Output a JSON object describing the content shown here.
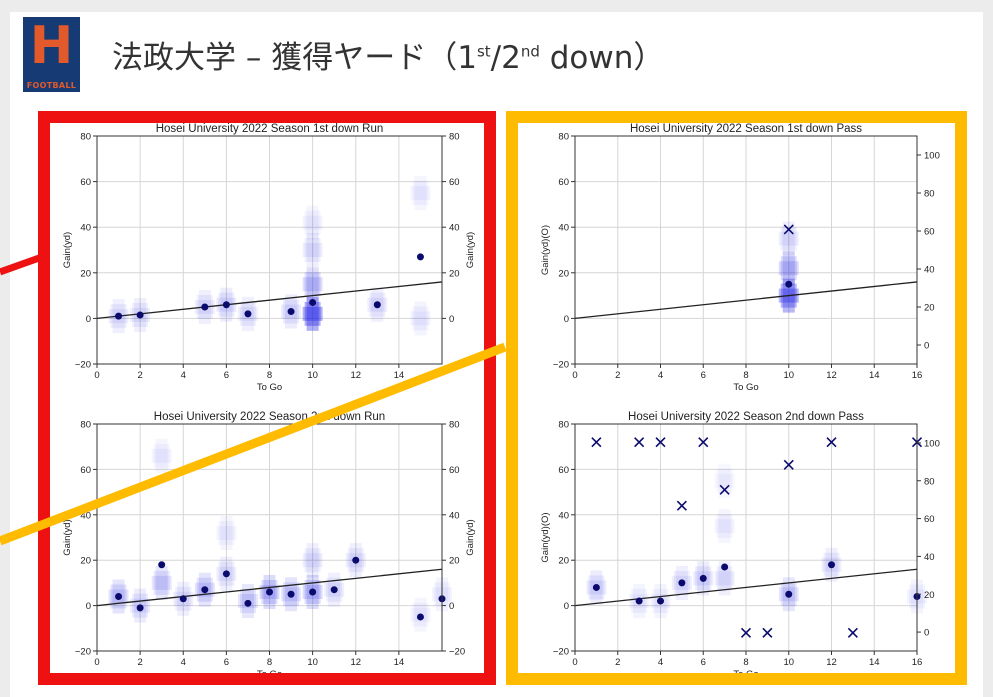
{
  "header": {
    "logo_letter": "H",
    "logo_text": "FOOTBALL",
    "title_main": "法政大学 – 獲得ヤード（1",
    "sup1": "st",
    "title_mid": "/2",
    "sup2": "nd",
    "title_end": " down）"
  },
  "colors": {
    "run_frame": "#ee1111",
    "pass_frame": "#ffbb00",
    "point": "#0b0b6e",
    "density": "#1e1ee6",
    "logo_bg": "#163a73",
    "logo_fg": "#e2592c"
  },
  "chart_data": [
    {
      "type": "scatter",
      "title": "Hosei University 2022 Season  1st down Run",
      "xlabel": "To Go",
      "ylabel": "Gain(yd)",
      "ylabel_right": "Gain(yd)",
      "xlim": [
        0,
        16
      ],
      "ylim": [
        -20,
        80
      ],
      "xticks": [
        0,
        2,
        4,
        6,
        8,
        10,
        12,
        14
      ],
      "yticks": [
        -20,
        0,
        20,
        40,
        60,
        80
      ],
      "right_ylim": [
        -20,
        80
      ],
      "right_ticks": [
        0,
        20,
        40,
        60,
        80
      ],
      "grid": true,
      "points": [
        [
          1,
          1
        ],
        [
          2,
          1.5
        ],
        [
          5,
          5
        ],
        [
          6,
          6
        ],
        [
          7,
          2
        ],
        [
          9,
          3
        ],
        [
          10,
          7
        ],
        [
          13,
          6
        ],
        [
          15,
          27
        ]
      ],
      "x_markers": [],
      "trend": {
        "y_at_0": 0,
        "y_at_16": 16
      },
      "density": [
        [
          1,
          1,
          0.2
        ],
        [
          2,
          1.5,
          0.2
        ],
        [
          5,
          5,
          0.2
        ],
        [
          6,
          6,
          0.25
        ],
        [
          7,
          2,
          0.2
        ],
        [
          9,
          3,
          0.25
        ],
        [
          10,
          2,
          1
        ],
        [
          10,
          15,
          0.4
        ],
        [
          10,
          30,
          0.2
        ],
        [
          10,
          42,
          0.12
        ],
        [
          13,
          6,
          0.2
        ],
        [
          15,
          0,
          0.15
        ],
        [
          15,
          55,
          0.12
        ]
      ]
    },
    {
      "type": "scatter",
      "title": "Hosei University 2022 Season  1st down Pass",
      "xlabel": "To Go",
      "ylabel": "Gain(yd)(O)",
      "xlim": [
        0,
        16
      ],
      "ylim": [
        -20,
        80
      ],
      "xticks": [
        0,
        2,
        4,
        6,
        8,
        10,
        12,
        14,
        16
      ],
      "yticks": [
        -20,
        0,
        20,
        40,
        60,
        80
      ],
      "right_ylim": [
        -10,
        110
      ],
      "right_ticks": [
        0,
        20,
        40,
        60,
        80,
        100
      ],
      "grid": true,
      "points": [
        [
          10,
          15
        ]
      ],
      "x_markers": [
        [
          10,
          39
        ]
      ],
      "trend": {
        "y_at_0": 0,
        "y_at_16": 16
      },
      "density": [
        [
          10,
          10,
          0.9
        ],
        [
          10,
          22,
          0.45
        ],
        [
          10,
          35,
          0.2
        ]
      ]
    },
    {
      "type": "scatter",
      "title": "Hosei University 2022 Season  2nd down Run",
      "xlabel": "To Go",
      "ylabel": "Gain(yd)",
      "ylabel_right": "Gain(yd)",
      "xlim": [
        0,
        16
      ],
      "ylim": [
        -20,
        80
      ],
      "xticks": [
        0,
        2,
        4,
        6,
        8,
        10,
        12,
        14
      ],
      "yticks": [
        -20,
        0,
        20,
        40,
        60,
        80
      ],
      "right_ylim": [
        -20,
        80
      ],
      "right_ticks": [
        -20,
        0,
        20,
        40,
        60,
        80
      ],
      "grid": true,
      "points": [
        [
          1,
          4
        ],
        [
          2,
          -1
        ],
        [
          3,
          18
        ],
        [
          4,
          3
        ],
        [
          5,
          7
        ],
        [
          6,
          14
        ],
        [
          7,
          1
        ],
        [
          8,
          6
        ],
        [
          9,
          5
        ],
        [
          10,
          6
        ],
        [
          11,
          7
        ],
        [
          12,
          20
        ],
        [
          15,
          -5
        ],
        [
          16,
          3
        ]
      ],
      "x_markers": [],
      "trend": {
        "y_at_0": 0,
        "y_at_16": 16
      },
      "density": [
        [
          1,
          4,
          0.35
        ],
        [
          2,
          0,
          0.25
        ],
        [
          3,
          10,
          0.3
        ],
        [
          3,
          66,
          0.12
        ],
        [
          4,
          3,
          0.2
        ],
        [
          5,
          7,
          0.35
        ],
        [
          6,
          14,
          0.2
        ],
        [
          6,
          32,
          0.12
        ],
        [
          7,
          2,
          0.3
        ],
        [
          8,
          6,
          0.45
        ],
        [
          9,
          5,
          0.35
        ],
        [
          10,
          6,
          0.45
        ],
        [
          10,
          20,
          0.2
        ],
        [
          11,
          7,
          0.2
        ],
        [
          12,
          20,
          0.2
        ],
        [
          15,
          -4,
          0.12
        ],
        [
          16,
          5,
          0.15
        ]
      ]
    },
    {
      "type": "scatter",
      "title": "Hosei University 2022 Season  2nd down Pass",
      "xlabel": "To Go",
      "ylabel": "Gain(yd)(O)",
      "xlim": [
        0,
        16
      ],
      "ylim": [
        -20,
        80
      ],
      "xticks": [
        0,
        2,
        4,
        6,
        8,
        10,
        12,
        14,
        16
      ],
      "yticks": [
        -20,
        0,
        20,
        40,
        60,
        80
      ],
      "right_ylim": [
        -10,
        110
      ],
      "right_ticks": [
        0,
        20,
        40,
        60,
        80,
        100
      ],
      "grid": true,
      "points": [
        [
          1,
          8
        ],
        [
          3,
          2
        ],
        [
          4,
          2
        ],
        [
          5,
          10
        ],
        [
          6,
          12
        ],
        [
          7,
          17
        ],
        [
          10,
          5
        ],
        [
          12,
          18
        ],
        [
          16,
          4
        ]
      ],
      "x_markers": [
        [
          1,
          72
        ],
        [
          3,
          72
        ],
        [
          4,
          72
        ],
        [
          6,
          72
        ],
        [
          12,
          72
        ],
        [
          16,
          72
        ],
        [
          10,
          62
        ],
        [
          7,
          51
        ],
        [
          5,
          44
        ],
        [
          8,
          -12
        ],
        [
          9,
          -12
        ],
        [
          13,
          -12
        ]
      ],
      "trend": {
        "y_at_0": 0,
        "y_at_16": 16
      },
      "density": [
        [
          1,
          8,
          0.25
        ],
        [
          3,
          2,
          0.15
        ],
        [
          4,
          2,
          0.15
        ],
        [
          5,
          10,
          0.2
        ],
        [
          6,
          12,
          0.25
        ],
        [
          7,
          12,
          0.2
        ],
        [
          7,
          35,
          0.12
        ],
        [
          7,
          55,
          0.1
        ],
        [
          10,
          5,
          0.3
        ],
        [
          12,
          18,
          0.2
        ],
        [
          16,
          4,
          0.15
        ]
      ]
    }
  ]
}
